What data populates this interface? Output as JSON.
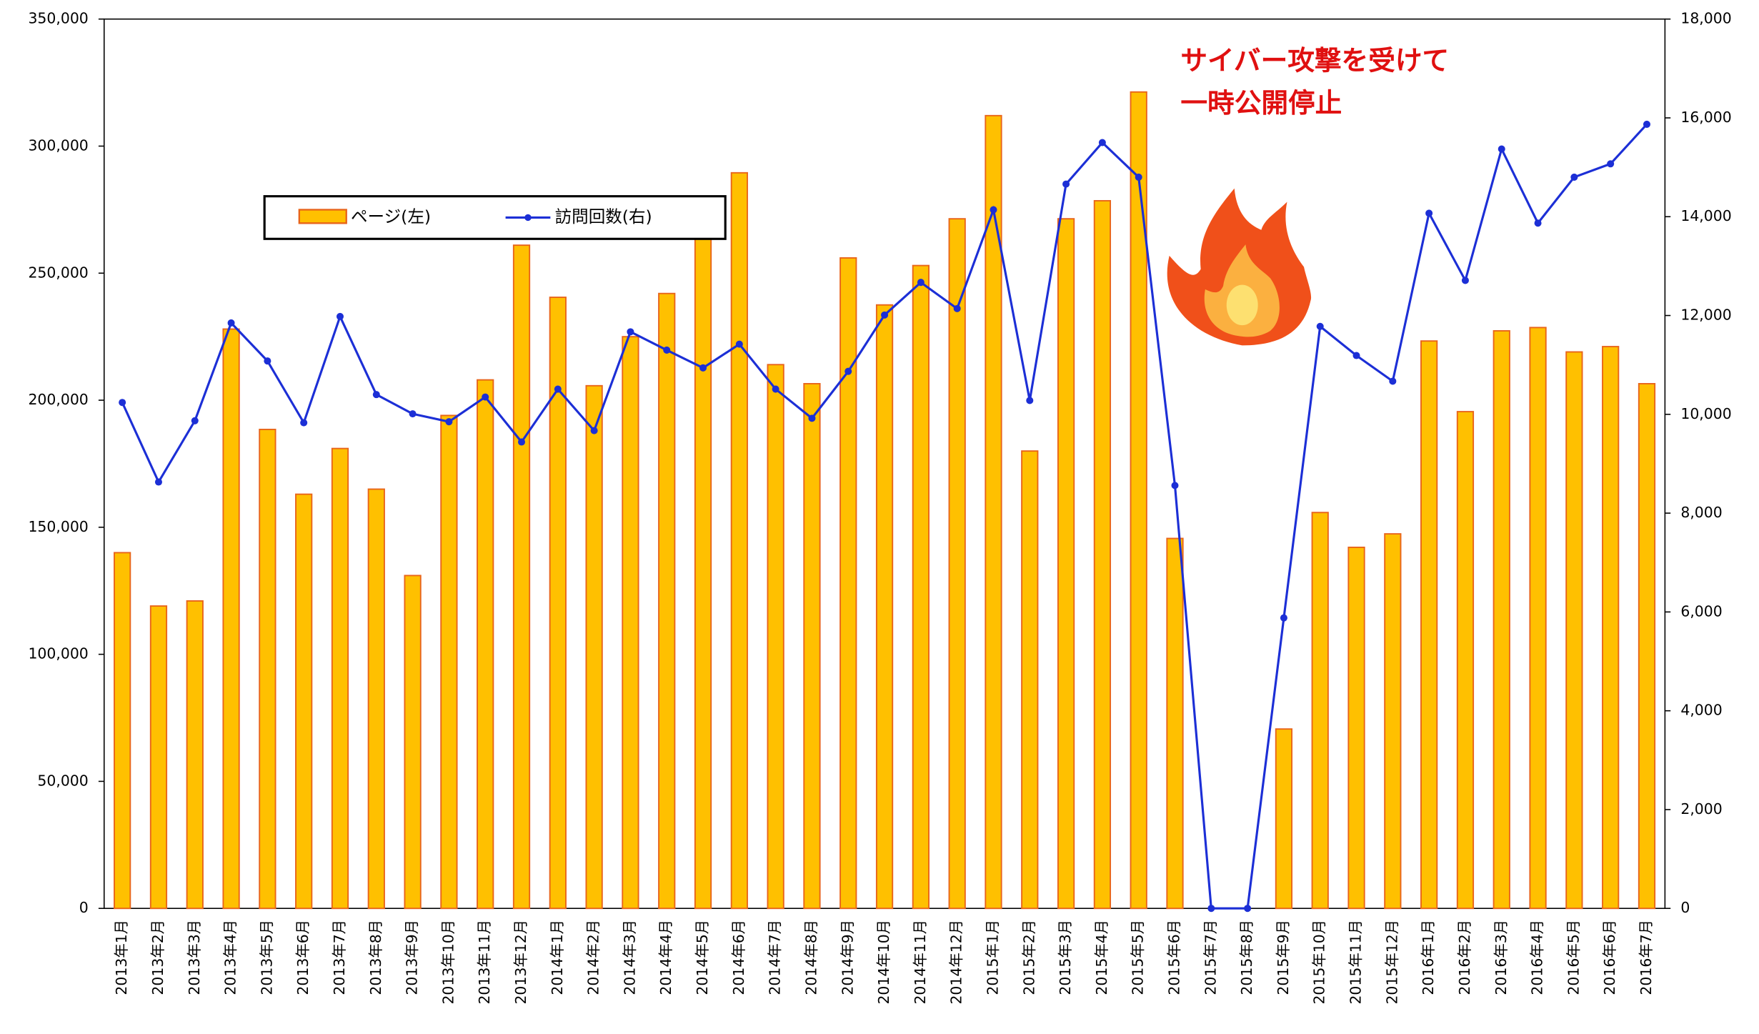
{
  "chart_data": {
    "type": "bar",
    "categories": [
      "2013年1月",
      "2013年2月",
      "2013年3月",
      "2013年4月",
      "2013年5月",
      "2013年6月",
      "2013年7月",
      "2013年8月",
      "2013年9月",
      "2013年10月",
      "2013年11月",
      "2013年12月",
      "2014年1月",
      "2014年2月",
      "2014年3月",
      "2014年4月",
      "2014年5月",
      "2014年6月",
      "2014年7月",
      "2014年8月",
      "2014年9月",
      "2014年10月",
      "2014年11月",
      "2014年12月",
      "2015年1月",
      "2015年2月",
      "2015年3月",
      "2015年4月",
      "2015年5月",
      "2015年6月",
      "2015年7月",
      "2015年8月",
      "2015年9月",
      "2015年10月",
      "2015年11月",
      "2015年12月",
      "2016年1月",
      "2016年2月",
      "2016年3月",
      "2016年4月",
      "2016年5月",
      "2016年6月",
      "2016年7月"
    ],
    "series": [
      {
        "name": "ページ(左)",
        "type": "bar",
        "color": "#ffc000",
        "edge": "#e8641a",
        "values": [
          140000,
          119000,
          121000,
          228000,
          188500,
          163000,
          181000,
          165000,
          131000,
          194000,
          208000,
          261000,
          240500,
          205700,
          225000,
          242000,
          264000,
          289500,
          214000,
          206500,
          256000,
          237500,
          253000,
          271400,
          312000,
          180000,
          271400,
          278500,
          321300,
          145600,
          0,
          0,
          70600,
          155800,
          142100,
          147400,
          223300,
          195500,
          227300,
          228600,
          219000,
          221100,
          206500
        ]
      },
      {
        "name": "訪問回数(右)",
        "type": "line",
        "axis": "y2",
        "color": "#1c2fd6",
        "values": [
          10240,
          8630,
          9870,
          11850,
          11080,
          9830,
          11980,
          10400,
          10010,
          9850,
          10350,
          9440,
          10510,
          9670,
          11670,
          11300,
          10940,
          11420,
          10510,
          9920,
          10870,
          12010,
          12670,
          12140,
          14140,
          10280,
          14660,
          15500,
          14800,
          8560,
          0,
          0,
          5880,
          11780,
          11190,
          10670,
          14070,
          12710,
          15370,
          13870,
          14800,
          15070,
          15870
        ]
      }
    ],
    "ylim": [
      0,
      350000
    ],
    "yticks": [
      0,
      {
        "value": 50000,
        "label": "50,000"
      },
      {
        "value": 100000,
        "label": "100,000"
      },
      {
        "value": 150000,
        "label": "150,000"
      },
      {
        "value": 200000,
        "label": "200,000"
      },
      {
        "value": 250000,
        "label": "250,000"
      },
      {
        "value": 300000,
        "label": "300,000"
      },
      {
        "value": 350000,
        "label": "350,000"
      }
    ],
    "y2lim": [
      0,
      18000
    ],
    "y2ticks": [
      0,
      {
        "value": 2000,
        "label": "2,000"
      },
      {
        "value": 4000,
        "label": "4,000"
      },
      {
        "value": 6000,
        "label": "6,000"
      },
      {
        "value": 8000,
        "label": "8,000"
      },
      {
        "value": 10000,
        "label": "10,000"
      },
      {
        "value": 12000,
        "label": "12,000"
      },
      {
        "value": 14000,
        "label": "14,000"
      },
      {
        "value": 16000,
        "label": "16,000"
      },
      {
        "value": 18000,
        "label": "18,000"
      }
    ],
    "annotations": [
      "サイバー攻撃を受けて",
      "一時公開停止"
    ],
    "grid": false
  }
}
